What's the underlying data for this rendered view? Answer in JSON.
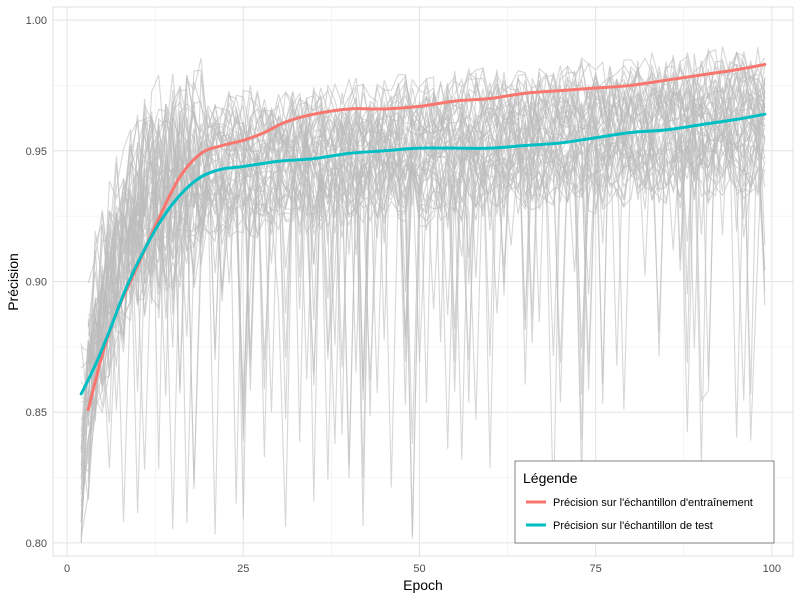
{
  "chart_data": {
    "type": "line",
    "xlabel": "Epoch",
    "ylabel": "Précision",
    "xlim": [
      -2,
      103
    ],
    "ylim": [
      0.795,
      1.005
    ],
    "x_ticks": [
      0,
      25,
      50,
      75,
      100
    ],
    "y_ticks": [
      0.8,
      0.85,
      0.9,
      0.95,
      1.0
    ],
    "x_tick_labels": [
      "0",
      "25",
      "50",
      "75",
      "100"
    ],
    "y_tick_labels": [
      "0.80",
      "0.85",
      "0.90",
      "0.95",
      "1.00"
    ],
    "grid": true,
    "background_runs": {
      "color": "#bdbdbd",
      "count": 50,
      "x_range": [
        2,
        99
      ],
      "y_range": [
        0.8,
        1.0
      ]
    },
    "legend": {
      "title": "Légende",
      "placement": "bottom-right"
    },
    "series": [
      {
        "name": "Précision sur l'échantillon d'entraînement",
        "color": "#f8766d",
        "x": [
          3,
          5,
          7,
          10,
          13,
          16,
          19,
          22,
          25,
          28,
          31,
          35,
          40,
          45,
          50,
          55,
          60,
          65,
          70,
          75,
          80,
          85,
          90,
          95,
          99
        ],
        "y": [
          0.851,
          0.872,
          0.888,
          0.906,
          0.924,
          0.94,
          0.949,
          0.952,
          0.954,
          0.957,
          0.961,
          0.964,
          0.966,
          0.966,
          0.967,
          0.969,
          0.97,
          0.972,
          0.973,
          0.974,
          0.975,
          0.977,
          0.979,
          0.981,
          0.983
        ]
      },
      {
        "name": "Précision sur l'échantillon de test",
        "color": "#00bfc4",
        "x": [
          2,
          4,
          6,
          8,
          10,
          13,
          16,
          19,
          22,
          25,
          30,
          35,
          40,
          45,
          50,
          55,
          60,
          65,
          70,
          75,
          80,
          85,
          90,
          95,
          99
        ],
        "y": [
          0.857,
          0.868,
          0.881,
          0.895,
          0.907,
          0.922,
          0.933,
          0.94,
          0.943,
          0.944,
          0.946,
          0.947,
          0.949,
          0.95,
          0.951,
          0.951,
          0.951,
          0.952,
          0.953,
          0.955,
          0.957,
          0.958,
          0.96,
          0.962,
          0.964
        ]
      }
    ]
  }
}
